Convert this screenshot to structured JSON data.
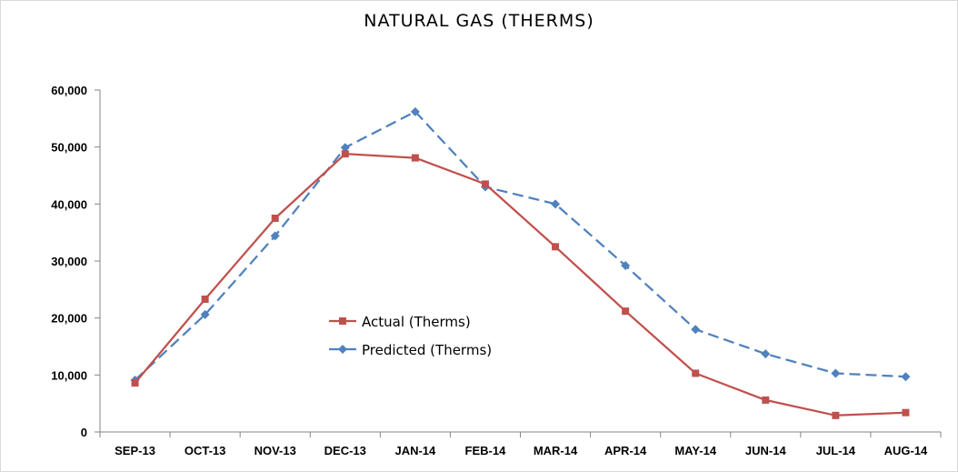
{
  "chart_data": {
    "type": "line",
    "title": "NATURAL GAS (THERMS)",
    "xlabel": "",
    "ylabel": "",
    "categories": [
      "SEP-13",
      "OCT-13",
      "NOV-13",
      "DEC-13",
      "JAN-14",
      "FEB-14",
      "MAR-14",
      "APR-14",
      "MAY-14",
      "JUN-14",
      "JUL-14",
      "AUG-14"
    ],
    "ylim": [
      0,
      60000
    ],
    "yticks": [
      0,
      10000,
      20000,
      30000,
      40000,
      50000,
      60000
    ],
    "ytick_labels": [
      "0",
      "10,000",
      "20,000",
      "30,000",
      "40,000",
      "50,000",
      "60,000"
    ],
    "grid": false,
    "legend_position": "center-left",
    "series": [
      {
        "name": "Actual (Therms)",
        "color": "#c0504d",
        "marker": "square",
        "line_style": "solid",
        "values": [
          8600,
          23300,
          37500,
          48800,
          48100,
          43500,
          32500,
          21200,
          10300,
          5600,
          2900,
          3400
        ]
      },
      {
        "name": "Predicted (Therms)",
        "color": "#4f81bd",
        "marker": "diamond",
        "line_style": "dashed",
        "values": [
          9100,
          20600,
          34400,
          49900,
          56200,
          43000,
          40000,
          29200,
          18000,
          13700,
          10300,
          9700
        ]
      }
    ]
  }
}
